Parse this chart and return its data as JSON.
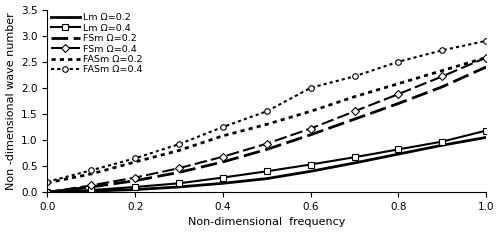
{
  "xlabel": "Non-dimensional  frequency",
  "ylabel": "Non -dimensional wave number",
  "xlim": [
    0,
    1.0
  ],
  "ylim": [
    0,
    3.5
  ],
  "yticks": [
    0,
    0.5,
    1.0,
    1.5,
    2.0,
    2.5,
    3.0,
    3.5
  ],
  "xticks": [
    0,
    0.2,
    0.4,
    0.6,
    0.8,
    1.0
  ],
  "series": [
    {
      "label": "Lm Ω=0.2",
      "linestyle": "solid",
      "marker": null,
      "linewidth": 2.0,
      "color": "#000000",
      "x": [
        0,
        0.1,
        0.2,
        0.3,
        0.4,
        0.5,
        0.6,
        0.7,
        0.8,
        0.9,
        1.0
      ],
      "y": [
        0.0,
        0.02,
        0.05,
        0.1,
        0.17,
        0.26,
        0.4,
        0.56,
        0.73,
        0.9,
        1.05
      ]
    },
    {
      "label": "Lm Ω=0.4",
      "linestyle": "solid",
      "marker": "s",
      "marker_filled": false,
      "linewidth": 1.5,
      "color": "#000000",
      "x": [
        0,
        0.1,
        0.2,
        0.3,
        0.4,
        0.5,
        0.6,
        0.7,
        0.8,
        0.9,
        1.0
      ],
      "y": [
        0.0,
        0.04,
        0.1,
        0.17,
        0.28,
        0.4,
        0.53,
        0.67,
        0.82,
        0.97,
        1.18
      ]
    },
    {
      "label": "FSm Ω=0.2",
      "linestyle": "dashed",
      "marker": null,
      "linewidth": 2.0,
      "color": "#000000",
      "x": [
        0,
        0.1,
        0.2,
        0.3,
        0.4,
        0.5,
        0.6,
        0.7,
        0.8,
        0.9,
        1.0
      ],
      "y": [
        0.0,
        0.1,
        0.22,
        0.38,
        0.58,
        0.82,
        1.1,
        1.4,
        1.7,
        2.02,
        2.4
      ]
    },
    {
      "label": "FSm Ω=0.4",
      "linestyle": "dashed",
      "marker": "D",
      "marker_filled": false,
      "linewidth": 1.5,
      "color": "#000000",
      "x": [
        0,
        0.1,
        0.2,
        0.3,
        0.4,
        0.5,
        0.6,
        0.7,
        0.8,
        0.9,
        1.0
      ],
      "y": [
        0.0,
        0.13,
        0.28,
        0.46,
        0.68,
        0.93,
        1.22,
        1.55,
        1.88,
        2.22,
        2.58
      ]
    },
    {
      "label": "FASm Ω=0.2",
      "linestyle": "dotted",
      "marker": null,
      "linewidth": 2.0,
      "color": "#000000",
      "x": [
        0,
        0.1,
        0.2,
        0.3,
        0.4,
        0.5,
        0.6,
        0.7,
        0.8,
        0.9,
        1.0
      ],
      "y": [
        0.18,
        0.35,
        0.58,
        0.8,
        1.08,
        1.3,
        1.55,
        1.83,
        2.08,
        2.33,
        2.58
      ]
    },
    {
      "label": "FASm Ω=0.4",
      "linestyle": "dotted",
      "marker": "o",
      "marker_filled": false,
      "linewidth": 1.5,
      "color": "#000000",
      "x": [
        0,
        0.1,
        0.2,
        0.3,
        0.4,
        0.5,
        0.6,
        0.7,
        0.8,
        0.9,
        1.0
      ],
      "y": [
        0.2,
        0.42,
        0.65,
        0.92,
        1.25,
        1.55,
        2.0,
        2.22,
        2.5,
        2.72,
        2.9
      ]
    }
  ],
  "legend_fontsize": 6.8,
  "axis_fontsize": 8,
  "tick_fontsize": 7.5,
  "background_color": "#ffffff"
}
